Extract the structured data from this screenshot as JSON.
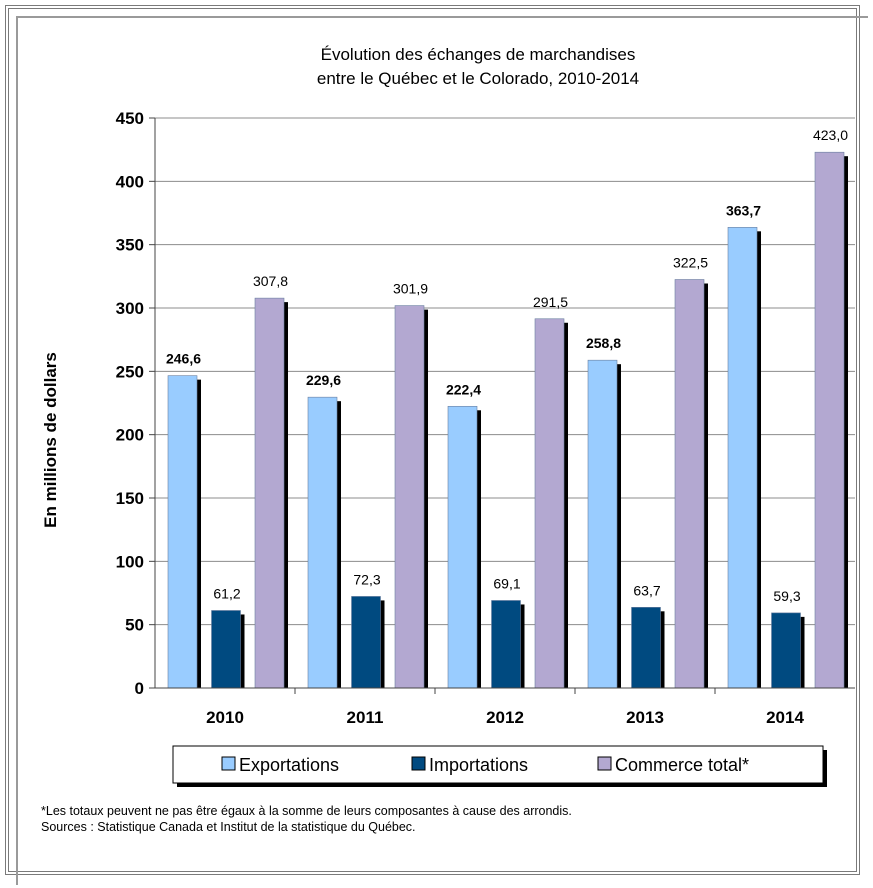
{
  "chart_data": {
    "type": "bar",
    "title": [
      "Évolution des échanges de marchandises",
      "entre le Québec et le Colorado, 2010-2014"
    ],
    "ylabel": "En millions de dollars",
    "xlabel": "",
    "ylim": [
      0,
      450
    ],
    "yticks": [
      "0",
      "50",
      "100",
      "150",
      "200",
      "250",
      "300",
      "350",
      "400",
      "450"
    ],
    "categories": [
      "2010",
      "2011",
      "2012",
      "2013",
      "2014"
    ],
    "series": [
      {
        "name": "Exportations",
        "color": "#99ccff",
        "values": [
          246.6,
          229.6,
          222.4,
          258.8,
          363.7
        ],
        "labels": [
          "246,6",
          "229,6",
          "222,4",
          "258,8",
          "363,7"
        ]
      },
      {
        "name": "Importations",
        "color": "#004a80",
        "values": [
          61.2,
          72.3,
          69.1,
          63.7,
          59.3
        ],
        "labels": [
          "61,2",
          "72,3",
          "69,1",
          "63,7",
          "59,3"
        ]
      },
      {
        "name": "Commerce total*",
        "color": "#b3a8d1",
        "values": [
          307.8,
          301.9,
          291.5,
          322.5,
          423.0
        ],
        "labels": [
          "307,8",
          "301,9",
          "291,5",
          "322,5",
          "423,0"
        ]
      }
    ],
    "grid": true,
    "legend_position": "bottom"
  },
  "footnote": {
    "line1": "*Les totaux peuvent ne pas être égaux à la somme de leurs composantes à cause des arrondis.",
    "line2": "Sources : Statistique Canada et Institut de la statistique du Québec."
  }
}
